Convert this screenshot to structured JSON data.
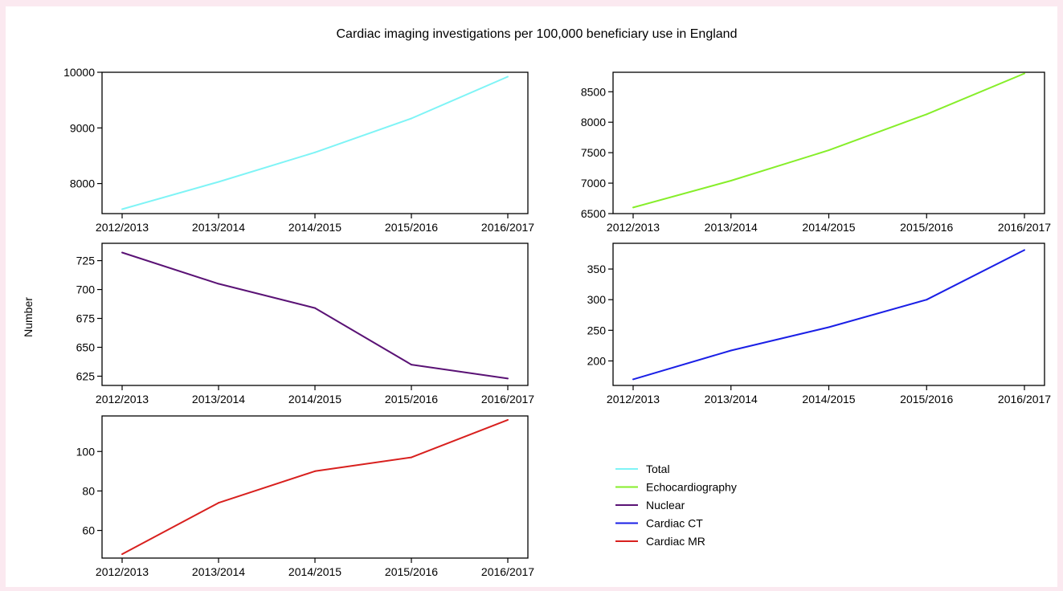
{
  "chart_data": {
    "type": "line",
    "title": "Cardiac imaging investigations per 100,000 beneficiary use in England",
    "ylabel": "Number",
    "categories": [
      "2012/2013",
      "2013/2014",
      "2014/2015",
      "2015/2016",
      "2016/2017"
    ],
    "panels": [
      {
        "series": "Total",
        "color": "#7ff4f6",
        "values": [
          7540,
          8030,
          8560,
          9170,
          9920
        ],
        "ylim": [
          7460,
          10000
        ],
        "yticks": [
          8000,
          9000,
          10000
        ],
        "ytick_labels": [
          "8000",
          "9000",
          "10000"
        ]
      },
      {
        "series": "Echocardiography",
        "color": "#86ee2a",
        "values": [
          6600,
          7040,
          7540,
          8130,
          8800
        ],
        "ylim": [
          6500,
          8820
        ],
        "yticks": [
          6500,
          7000,
          7500,
          8000,
          8500
        ],
        "ytick_labels": [
          "6500",
          "7000",
          "7500",
          "8000",
          "8500"
        ]
      },
      {
        "series": "Nuclear",
        "color": "#5a1275",
        "values": [
          732,
          705,
          684,
          635,
          623
        ],
        "ylim": [
          617,
          740
        ],
        "yticks": [
          625,
          650,
          675,
          700,
          725
        ],
        "ytick_labels": [
          "625",
          "650",
          "675",
          "700",
          "725"
        ]
      },
      {
        "series": "Cardiac CT",
        "color": "#1a1fe6",
        "values": [
          170,
          217,
          255,
          300,
          381
        ],
        "ylim": [
          160,
          392
        ],
        "yticks": [
          200,
          250,
          300,
          350
        ],
        "ytick_labels": [
          "200",
          "250",
          "300",
          "350"
        ]
      },
      {
        "series": "Cardiac MR",
        "color": "#d8201e",
        "values": [
          48,
          74,
          90,
          97,
          116
        ],
        "ylim": [
          46,
          118
        ],
        "yticks": [
          60,
          80,
          100
        ],
        "ytick_labels": [
          "60",
          "80",
          "100"
        ]
      }
    ],
    "legend": {
      "position": "bottom-right",
      "entries": [
        {
          "label": "Total",
          "color": "#7ff4f6"
        },
        {
          "label": "Echocardiography",
          "color": "#86ee2a"
        },
        {
          "label": "Nuclear",
          "color": "#5a1275"
        },
        {
          "label": "Cardiac CT",
          "color": "#1a1fe6"
        },
        {
          "label": "Cardiac MR",
          "color": "#d8201e"
        }
      ]
    }
  }
}
